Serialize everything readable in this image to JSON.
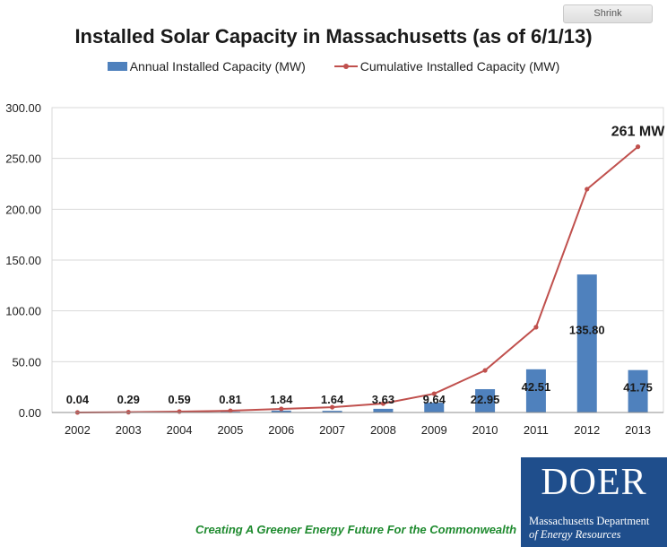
{
  "page": {
    "shrink_label": "Shrink",
    "tagline": "Creating A Greener Energy Future For the Commonwealth",
    "logo": {
      "mark": "DOER",
      "name_line1": "Massachusetts Department",
      "name_line2": "of Energy Resources"
    }
  },
  "chart_data": {
    "type": "bar",
    "title": "Installed Solar Capacity in Massachusetts (as of 6/1/13)",
    "xlabel": "",
    "ylabel": "",
    "categories": [
      "2002",
      "2003",
      "2004",
      "2005",
      "2006",
      "2007",
      "2008",
      "2009",
      "2010",
      "2011",
      "2012",
      "2013"
    ],
    "ylim": [
      0,
      300
    ],
    "yticks": [
      0,
      50,
      100,
      150,
      200,
      250,
      300
    ],
    "ytick_labels": [
      "0.00",
      "50.00",
      "100.00",
      "150.00",
      "200.00",
      "250.00",
      "300.00"
    ],
    "grid": true,
    "legend_position": "top",
    "series": [
      {
        "name": "Annual Installed Capacity (MW)",
        "kind": "bar",
        "color": "#4f81bd",
        "values": [
          0.04,
          0.29,
          0.59,
          0.81,
          1.84,
          1.64,
          3.63,
          9.64,
          22.95,
          42.51,
          135.8,
          41.75
        ],
        "data_labels": [
          "0.04",
          "0.29",
          "0.59",
          "0.81",
          "1.84",
          "1.64",
          "3.63",
          "9.64",
          "22.95",
          "42.51",
          "135.80",
          "41.75"
        ]
      },
      {
        "name": "Cumulative Installed Capacity (MW)",
        "kind": "line",
        "color": "#c0504d",
        "values": [
          0.04,
          0.33,
          0.92,
          1.73,
          3.57,
          5.21,
          8.84,
          18.48,
          41.43,
          83.94,
          219.74,
          261.49
        ]
      }
    ],
    "annotations": [
      {
        "text": "261 MW",
        "target": "Cumulative Installed Capacity (MW)",
        "category": "2013"
      }
    ]
  }
}
